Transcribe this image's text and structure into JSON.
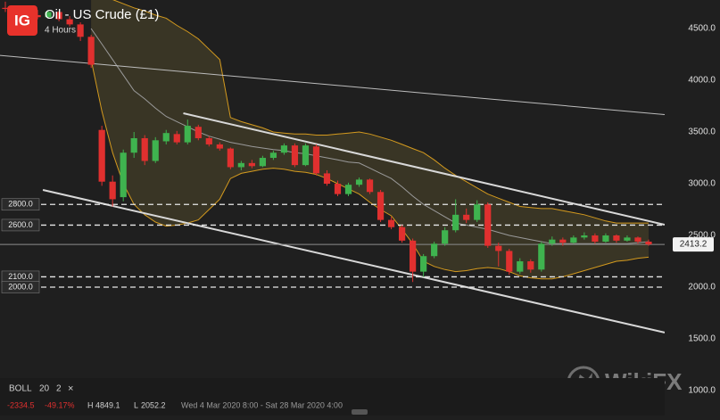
{
  "header": {
    "logo": "IG",
    "title": "Oil - US Crude (£1)",
    "interval": "4 Hours"
  },
  "chart_data": {
    "type": "candlestick",
    "up_color": "#3fb34f",
    "down_color": "#e0302f",
    "open": [
      4700,
      4690,
      4660,
      4630,
      4610,
      4660,
      4590,
      4540,
      4420,
      3520,
      3020,
      2870,
      3300,
      3440,
      3220,
      3410,
      3480,
      3400,
      3550,
      3440,
      3380,
      3340,
      3160,
      3200,
      3170,
      3250,
      3300,
      3370,
      3180,
      3360,
      3100,
      3000,
      2900,
      2990,
      3040,
      2920,
      2650,
      2580,
      2450,
      2150,
      2300,
      2420,
      2550,
      2700,
      2650,
      2800,
      2400,
      2350,
      2150,
      2250,
      2170,
      2420,
      2460,
      2430,
      2480,
      2500,
      2440,
      2500,
      2450,
      2480,
      2440
    ],
    "high": [
      4760,
      4720,
      4700,
      4680,
      4680,
      4670,
      4620,
      4560,
      4440,
      3560,
      3080,
      3330,
      3500,
      3470,
      3450,
      3520,
      3510,
      3620,
      3570,
      3460,
      3400,
      3350,
      3220,
      3230,
      3270,
      3320,
      3390,
      3390,
      3390,
      3380,
      3130,
      3030,
      3010,
      3060,
      3050,
      2940,
      2680,
      2600,
      2470,
      2320,
      2440,
      2580,
      2850,
      2760,
      2840,
      2820,
      2430,
      2370,
      2280,
      2270,
      2440,
      2490,
      2480,
      2500,
      2530,
      2520,
      2520,
      2510,
      2500,
      2490,
      2460
    ],
    "low": [
      4660,
      4640,
      4610,
      4590,
      4600,
      4570,
      4520,
      4380,
      4120,
      2980,
      2780,
      2830,
      3250,
      3180,
      3200,
      3380,
      3380,
      3380,
      3420,
      3360,
      3320,
      3140,
      3130,
      3150,
      3160,
      3230,
      3280,
      3160,
      3170,
      3080,
      2980,
      2880,
      2880,
      2970,
      2900,
      2630,
      2560,
      2430,
      2050,
      2100,
      2280,
      2400,
      2530,
      2620,
      2630,
      2380,
      2200,
      2120,
      2130,
      2140,
      2150,
      2400,
      2400,
      2420,
      2460,
      2420,
      2430,
      2430,
      2440,
      2420,
      2400
    ],
    "close": [
      4690,
      4660,
      4630,
      4610,
      4660,
      4590,
      4540,
      4420,
      4150,
      3020,
      2850,
      3300,
      3440,
      3220,
      3420,
      3490,
      3400,
      3560,
      3440,
      3380,
      3340,
      3160,
      3200,
      3170,
      3250,
      3300,
      3370,
      3180,
      3370,
      3100,
      3000,
      2900,
      2990,
      3040,
      2920,
      2650,
      2580,
      2450,
      2150,
      2300,
      2420,
      2550,
      2700,
      2650,
      2800,
      2400,
      2350,
      2150,
      2250,
      2170,
      2420,
      2460,
      2430,
      2480,
      2500,
      2440,
      2500,
      2450,
      2480,
      2440,
      2413.2
    ],
    "bands": {
      "fill": "rgba(190,170,70,0.16)",
      "band_color": "#d49a1e",
      "middle_color": "#9a9a9a",
      "upper": [
        null,
        null,
        null,
        null,
        null,
        null,
        null,
        null,
        4800,
        4790,
        4780,
        4740,
        4700,
        4670,
        4630,
        4600,
        4530,
        4470,
        4400,
        4300,
        4200,
        3640,
        3600,
        3570,
        3540,
        3500,
        3490,
        3480,
        3480,
        3470,
        3470,
        3480,
        3490,
        3500,
        3480,
        3450,
        3420,
        3380,
        3340,
        3300,
        3230,
        3150,
        3080,
        3020,
        2960,
        2900,
        2860,
        2820,
        2780,
        2770,
        2760,
        2760,
        2740,
        2720,
        2700,
        2670,
        2640,
        2620,
        2620,
        2620,
        2620
      ],
      "middle": [
        null,
        null,
        null,
        null,
        null,
        null,
        null,
        null,
        4500,
        4350,
        4200,
        4050,
        3900,
        3820,
        3730,
        3650,
        3600,
        3550,
        3500,
        3460,
        3430,
        3400,
        3380,
        3360,
        3345,
        3330,
        3320,
        3300,
        3290,
        3270,
        3250,
        3230,
        3210,
        3200,
        3150,
        3100,
        3050,
        2970,
        2880,
        2800,
        2740,
        2680,
        2620,
        2600,
        2580,
        2560,
        2530,
        2500,
        2480,
        2460,
        2440,
        2420,
        2420,
        2420,
        2420,
        2420,
        2420,
        2420,
        2420,
        2430,
        2440
      ],
      "lower": [
        null,
        null,
        null,
        null,
        null,
        null,
        null,
        null,
        4200,
        3700,
        3300,
        3000,
        2800,
        2700,
        2630,
        2590,
        2600,
        2620,
        2650,
        2750,
        2850,
        3050,
        3100,
        3120,
        3140,
        3150,
        3140,
        3120,
        3110,
        3090,
        3050,
        3000,
        2950,
        2900,
        2820,
        2750,
        2690,
        2560,
        2420,
        2250,
        2200,
        2170,
        2150,
        2160,
        2180,
        2190,
        2180,
        2150,
        2110,
        2090,
        2080,
        2080,
        2100,
        2130,
        2160,
        2190,
        2220,
        2250,
        2260,
        2280,
        2290
      ]
    },
    "trendlines": [
      {
        "start": 4241,
        "end": 3668
      },
      {
        "start": 3681,
        "end": 2604
      },
      {
        "start": 2940,
        "end": 1561
      }
    ],
    "levels": [
      {
        "value": 2800,
        "label": "2800.0"
      },
      {
        "value": 2600,
        "label": "2600.0"
      },
      {
        "value": 2100,
        "label": "2100.0"
      },
      {
        "value": 2000,
        "label": "2000.0"
      }
    ],
    "last_price": 2413.2,
    "ylim": [
      759,
      4776
    ],
    "yticks": [
      {
        "value": 4500,
        "label": "4500.0"
      },
      {
        "value": 4000,
        "label": "4000.0"
      },
      {
        "value": 3500,
        "label": "3500.0"
      },
      {
        "value": 3000,
        "label": "3000.0"
      },
      {
        "value": 2500,
        "label": "2500.0"
      },
      {
        "value": 2000,
        "label": "2000.0"
      },
      {
        "value": 1500,
        "label": "1500.0"
      },
      {
        "value": 1000,
        "label": "1000.0"
      }
    ]
  },
  "status_bar": {
    "indicator": "BOLL",
    "period": 20,
    "deviation": 2,
    "close": "×",
    "change": -2334.5,
    "change_pct": "-49.17%",
    "high_label": "H",
    "high": 4849.1,
    "low_label": "L",
    "low": 2052.2,
    "range": "Wed 4 Mar 2020 8:00 - Sat 28 Mar 2020 4:00"
  },
  "watermark": "WikiFX"
}
